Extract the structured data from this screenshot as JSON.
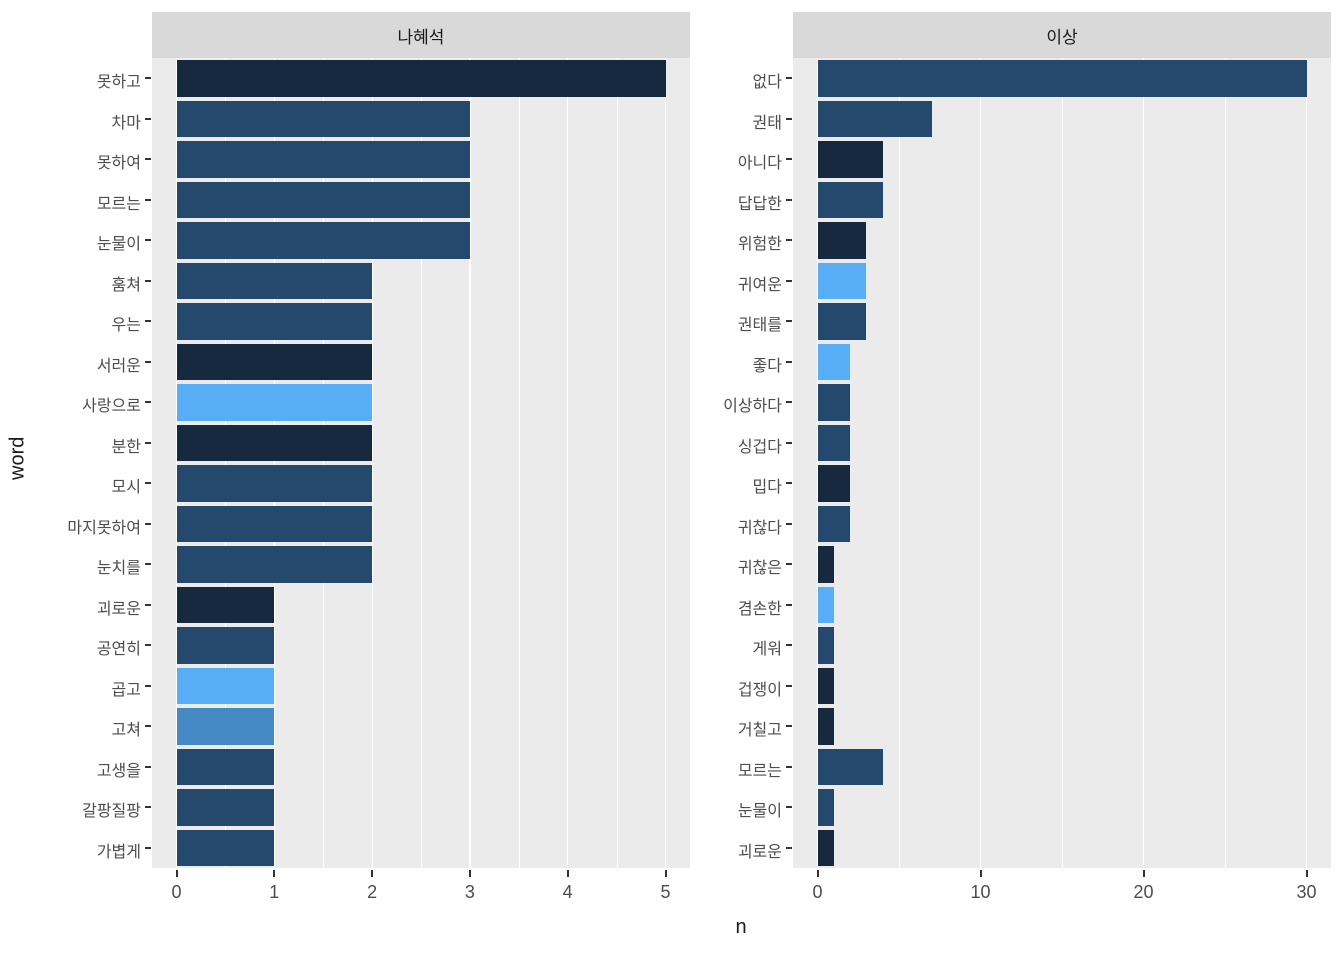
{
  "axes": {
    "x_title": "n",
    "y_title": "word"
  },
  "panel_style": {
    "panel_bg": "#EBEBEB",
    "strip_bg": "#D9D9D9",
    "grid_color": "#FFFFFF",
    "axis_text_color": "#4D4D4D",
    "tick_mark_color": "#333333"
  },
  "palette": {
    "dark": "#16293E",
    "medium": "#24496D",
    "steel": "#4489C4",
    "light": "#57AEF5"
  },
  "chart_data": [
    {
      "type": "bar",
      "orientation": "horizontal",
      "facet": "나혜석",
      "xlabel": "n",
      "ylabel": "word",
      "x_ticks": [
        0,
        1,
        2,
        3,
        4,
        5
      ],
      "xlim": [
        0,
        5
      ],
      "grid": true,
      "categories": [
        "못하고",
        "차마",
        "못하여",
        "모르는",
        "눈물이",
        "훔쳐",
        "우는",
        "서러운",
        "사랑으로",
        "분한",
        "모시",
        "마지못하여",
        "눈치를",
        "괴로운",
        "공연히",
        "곱고",
        "고쳐",
        "고생을",
        "갈팡질팡",
        "가볍게"
      ],
      "values": [
        5,
        3,
        3,
        3,
        3,
        2,
        2,
        2,
        2,
        2,
        2,
        2,
        2,
        1,
        1,
        1,
        1,
        1,
        1,
        1
      ],
      "colors": [
        "dark",
        "medium",
        "medium",
        "medium",
        "medium",
        "medium",
        "medium",
        "dark",
        "light",
        "dark",
        "medium",
        "medium",
        "medium",
        "dark",
        "medium",
        "light",
        "steel",
        "medium",
        "medium",
        "medium"
      ]
    },
    {
      "type": "bar",
      "orientation": "horizontal",
      "facet": "이상",
      "xlabel": "n",
      "ylabel": "word",
      "x_ticks": [
        0,
        10,
        20,
        30
      ],
      "xlim": [
        0,
        30
      ],
      "grid": true,
      "categories": [
        "없다",
        "권태",
        "아니다",
        "답답한",
        "위험한",
        "귀여운",
        "권태를",
        "좋다",
        "이상하다",
        "싱겁다",
        "밉다",
        "귀찮다",
        "귀찮은",
        "겸손한",
        "게워",
        "겁쟁이",
        "거칠고",
        "모르는",
        "눈물이",
        "괴로운"
      ],
      "values": [
        30,
        7,
        4,
        4,
        3,
        3,
        3,
        2,
        2,
        2,
        2,
        2,
        1,
        1,
        1,
        1,
        1,
        4,
        1,
        1
      ],
      "colors": [
        "medium",
        "medium",
        "dark",
        "medium",
        "dark",
        "light",
        "medium",
        "light",
        "medium",
        "medium",
        "dark",
        "medium",
        "dark",
        "light",
        "medium",
        "dark",
        "dark",
        "medium",
        "medium",
        "dark"
      ]
    }
  ]
}
